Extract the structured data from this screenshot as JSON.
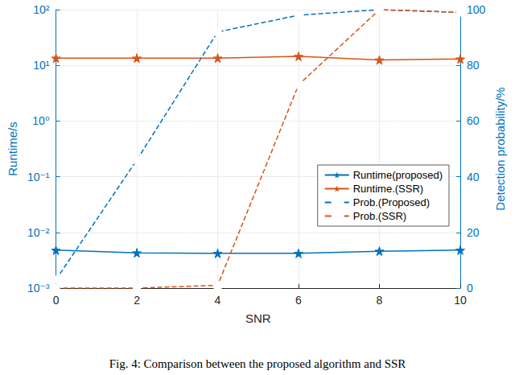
{
  "chart_data": {
    "type": "line",
    "caption": "Fig. 4: Comparison between the proposed algorithm and SSR",
    "xlabel": "SNR",
    "ylabel": "Runtime/s",
    "y2label": "Detection probability/%",
    "x": [
      0,
      2,
      4,
      6,
      8,
      10
    ],
    "xlim": [
      0,
      10
    ],
    "xticks": [
      0,
      2,
      4,
      6,
      8,
      10
    ],
    "log": "y",
    "ylim": [
      0.001,
      100
    ],
    "yticks": [
      {
        "value": 0.001,
        "label": "10⁻³"
      },
      {
        "value": 0.01,
        "label": "10⁻²"
      },
      {
        "value": 0.1,
        "label": "10⁻¹"
      },
      {
        "value": 1,
        "label": "10⁰"
      },
      {
        "value": 10,
        "label": "10¹"
      },
      {
        "value": 100,
        "label": "10²"
      }
    ],
    "y2lim": [
      0,
      100
    ],
    "y2ticks": [
      0,
      20,
      40,
      60,
      80,
      100
    ],
    "grid": true,
    "legend": "right",
    "series": [
      {
        "name": "Runtime(proposed)",
        "color": "#0072bd",
        "marker": "star",
        "line_style": "solid",
        "values": [
          0.0048,
          0.0043,
          0.0042,
          0.0042,
          0.0046,
          0.0048
        ]
      },
      {
        "name": "Runtime.(SSR)",
        "color": "#d95319",
        "marker": "star",
        "line_style": "solid",
        "values": [
          13.5,
          13.5,
          13.5,
          14.5,
          12.5,
          13
        ]
      },
      {
        "name": "Prob.(Proposed)",
        "color": "#0072bd",
        "marker": "square",
        "line_style": "dashed",
        "axis": "y2",
        "values": [
          3,
          46,
          92,
          98,
          100,
          99
        ]
      },
      {
        "name": "Prob.(SSR)",
        "color": "#d95319",
        "marker": "square",
        "line_style": "dashed",
        "axis": "y2",
        "values": [
          0,
          0,
          1,
          73,
          100,
          99
        ]
      }
    ]
  }
}
